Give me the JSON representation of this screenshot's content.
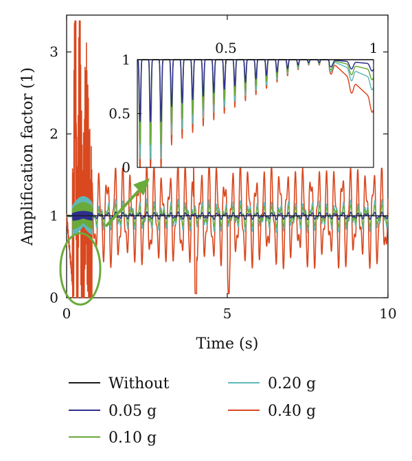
{
  "chart_data": [
    {
      "type": "line",
      "title": "",
      "xlabel": "Time (s)",
      "ylabel": "Amplification factor (1)",
      "xlim": [
        0,
        10
      ],
      "ylim": [
        0,
        3.45
      ],
      "x_ticks": [
        0,
        5,
        10
      ],
      "y_ticks": [
        0,
        1,
        2,
        3
      ],
      "grid": false,
      "legend_position": "bottom, two columns",
      "series": [
        {
          "name": "Without",
          "color": "#1a1a1a",
          "x": [
            0,
            10
          ],
          "y": [
            1,
            1
          ]
        },
        {
          "name": "0.05 g",
          "color": "#2e2e8f",
          "x": [
            0,
            0.9,
            1.5,
            2.5,
            3.5,
            4.5,
            5.5,
            6.5,
            7.5,
            8.5,
            10
          ],
          "y": [
            1,
            0.97,
            1.03,
            0.98,
            1.02,
            0.97,
            1.03,
            0.98,
            1.02,
            0.97,
            1
          ]
        },
        {
          "name": "0.10 g",
          "color": "#6aaa3a",
          "x": [
            0,
            0.9,
            1.5,
            2.5,
            3.5,
            4.5,
            5.5,
            6.5,
            7.5,
            8.5,
            10
          ],
          "y": [
            1,
            0.9,
            1.08,
            0.94,
            1.06,
            0.9,
            1.1,
            0.92,
            1.08,
            0.9,
            1
          ]
        },
        {
          "name": "0.20 g",
          "color": "#5fb8b8",
          "x": [
            0,
            0.9,
            1.5,
            2.5,
            3.5,
            4.5,
            5.5,
            6.5,
            7.5,
            8.5,
            10
          ],
          "y": [
            1,
            0.85,
            1.12,
            0.9,
            1.1,
            0.82,
            1.15,
            0.86,
            1.12,
            0.85,
            1
          ]
        },
        {
          "name": "0.40 g",
          "color": "#d9481f",
          "x": [
            0,
            0.2,
            0.27,
            0.33,
            0.4,
            0.5,
            0.6,
            0.75,
            1.0,
            2.0,
            3.0,
            3.95,
            4.0,
            4.3,
            5.0,
            5.2,
            6.0,
            7.0,
            8.0,
            9.0,
            10.0
          ],
          "y": [
            1,
            0.1,
            3.35,
            0.0,
            2.6,
            0.15,
            1.9,
            0.4,
            1.1,
            1.05,
            1.1,
            1.6,
            0.0,
            1.6,
            0.1,
            1.6,
            1.35,
            1.4,
            1.3,
            1.35,
            1.0
          ]
        }
      ]
    },
    {
      "type": "line",
      "title": "",
      "xlabel": "",
      "ylabel": "",
      "xlim": [
        0.2,
        1.0
      ],
      "ylim": [
        0,
        1
      ],
      "x_ticks": [
        0.5,
        1
      ],
      "x_tick_labels": [
        "0.5",
        "1"
      ],
      "y_ticks": [
        0,
        0.5,
        1
      ],
      "y_tick_labels": [
        "0",
        "0.5",
        "1"
      ],
      "grid": false,
      "note": "inset zoom",
      "series": [
        {
          "name": "Without",
          "color": "#1a1a1a",
          "x": [
            0.2,
            1.0
          ],
          "y": [
            1,
            1
          ]
        },
        {
          "name": "0.05 g",
          "color": "#2e2e8f",
          "x": [
            0.2,
            0.9,
            1.0
          ],
          "y": [
            1,
            0.97,
            0.95
          ]
        },
        {
          "name": "0.10 g",
          "color": "#6aaa3a",
          "x": [
            0.2,
            0.9,
            1.0
          ],
          "y": [
            1,
            0.93,
            0.88
          ]
        },
        {
          "name": "0.20 g",
          "color": "#5fb8b8",
          "x": [
            0.2,
            0.9,
            1.0
          ],
          "y": [
            1,
            0.88,
            0.78
          ]
        },
        {
          "name": "0.40 g",
          "color": "#d9481f",
          "x": [
            0.2,
            0.9,
            1.0
          ],
          "y": [
            1,
            0.7,
            0.62
          ]
        }
      ]
    }
  ],
  "legend": {
    "items": [
      {
        "label": "Without",
        "color": "#1a1a1a"
      },
      {
        "label": "0.05 g",
        "color": "#2e2e8f"
      },
      {
        "label": "0.10 g",
        "color": "#6aaa3a"
      },
      {
        "label": "0.20 g",
        "color": "#5fb8b8"
      },
      {
        "label": "0.40 g",
        "color": "#d9481f"
      }
    ]
  },
  "annotation": {
    "ellipse_color": "#6aaa3a",
    "arrow_color": "#6aaa3a"
  }
}
